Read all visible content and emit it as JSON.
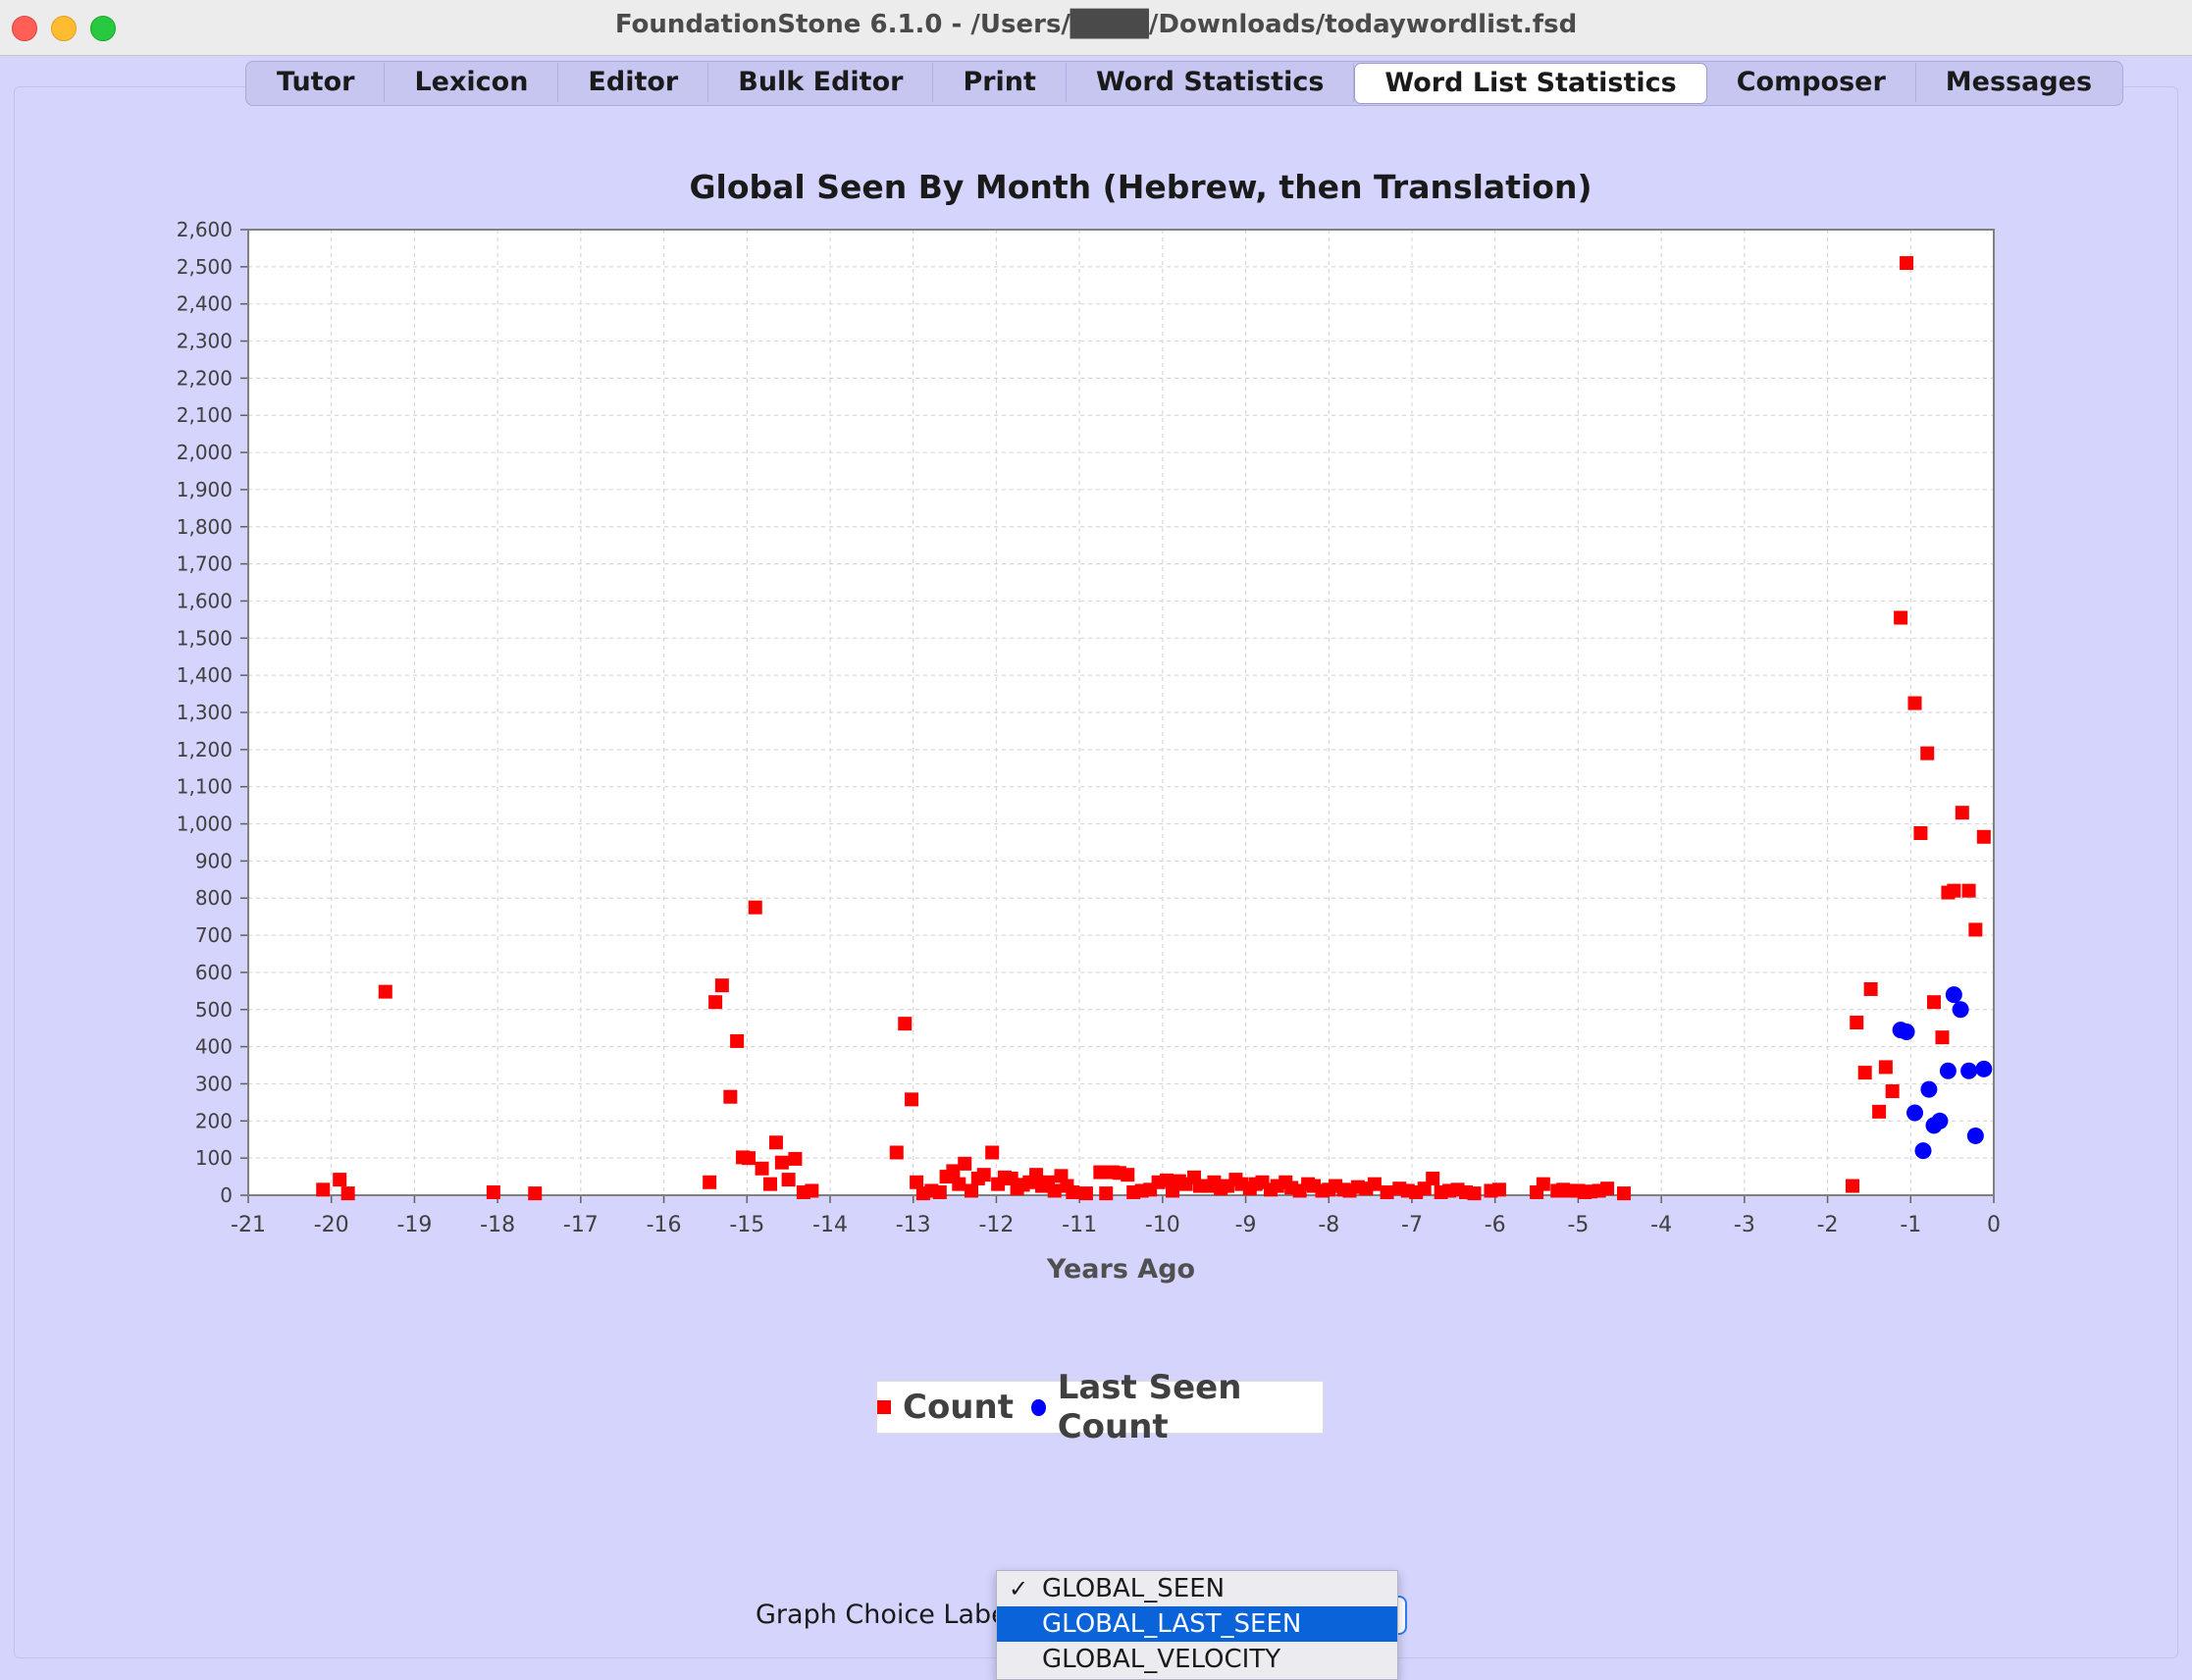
{
  "window": {
    "title": "FoundationStone 6.1.0 - /Users/████/Downloads/todaywordlist.fsd"
  },
  "tabs": [
    {
      "label": "Tutor",
      "active": false
    },
    {
      "label": "Lexicon",
      "active": false
    },
    {
      "label": "Editor",
      "active": false
    },
    {
      "label": "Bulk Editor",
      "active": false
    },
    {
      "label": "Print",
      "active": false
    },
    {
      "label": "Word Statistics",
      "active": false
    },
    {
      "label": "Word List Statistics",
      "active": true
    },
    {
      "label": "Composer",
      "active": false
    },
    {
      "label": "Messages",
      "active": false
    }
  ],
  "controls": {
    "graph_choice_label": "Graph Choice Label:",
    "options": [
      {
        "label": "GLOBAL_SEEN",
        "checked": true,
        "highlighted": false
      },
      {
        "label": "GLOBAL_LAST_SEEN",
        "checked": false,
        "highlighted": true
      },
      {
        "label": "GLOBAL_VELOCITY",
        "checked": false,
        "highlighted": false
      }
    ],
    "check_mark": "✓"
  },
  "chart_data": {
    "type": "scatter",
    "title": "Global Seen By Month (Hebrew, then Translation)",
    "xlabel": "Years Ago",
    "ylabel": "",
    "xlim": [
      -21,
      0
    ],
    "ylim": [
      0,
      2600
    ],
    "x_ticks": [
      -21,
      -20,
      -19,
      -18,
      -17,
      -16,
      -15,
      -14,
      -13,
      -12,
      -11,
      -10,
      -9,
      -8,
      -7,
      -6,
      -5,
      -4,
      -3,
      -2,
      -1,
      0
    ],
    "y_ticks": [
      0,
      100,
      200,
      300,
      400,
      500,
      600,
      700,
      800,
      900,
      1000,
      1100,
      1200,
      1300,
      1400,
      1500,
      1600,
      1700,
      1800,
      1900,
      2000,
      2100,
      2200,
      2300,
      2400,
      2500,
      2600
    ],
    "grid": true,
    "legend_position": "bottom",
    "series": [
      {
        "name": "Count",
        "marker": "square",
        "color": "#ff0000",
        "points": [
          [
            -20.1,
            15
          ],
          [
            -19.9,
            42
          ],
          [
            -19.8,
            5
          ],
          [
            -19.35,
            548
          ],
          [
            -18.05,
            8
          ],
          [
            -17.55,
            5
          ],
          [
            -15.45,
            35
          ],
          [
            -15.38,
            520
          ],
          [
            -15.3,
            565
          ],
          [
            -15.2,
            265
          ],
          [
            -15.12,
            415
          ],
          [
            -15.05,
            102
          ],
          [
            -14.98,
            100
          ],
          [
            -14.9,
            775
          ],
          [
            -14.82,
            72
          ],
          [
            -14.72,
            30
          ],
          [
            -14.65,
            142
          ],
          [
            -14.58,
            88
          ],
          [
            -14.5,
            42
          ],
          [
            -14.42,
            98
          ],
          [
            -14.32,
            8
          ],
          [
            -14.22,
            12
          ],
          [
            -13.2,
            115
          ],
          [
            -13.1,
            462
          ],
          [
            -13.02,
            258
          ],
          [
            -12.96,
            35
          ],
          [
            -12.88,
            5
          ],
          [
            -12.78,
            12
          ],
          [
            -12.68,
            8
          ],
          [
            -12.6,
            50
          ],
          [
            -12.52,
            65
          ],
          [
            -12.45,
            30
          ],
          [
            -12.38,
            85
          ],
          [
            -12.3,
            12
          ],
          [
            -12.22,
            45
          ],
          [
            -12.15,
            55
          ],
          [
            -12.05,
            115
          ],
          [
            -11.98,
            30
          ],
          [
            -11.9,
            48
          ],
          [
            -11.82,
            45
          ],
          [
            -11.75,
            18
          ],
          [
            -11.68,
            28
          ],
          [
            -11.6,
            35
          ],
          [
            -11.52,
            55
          ],
          [
            -11.45,
            25
          ],
          [
            -11.38,
            35
          ],
          [
            -11.3,
            12
          ],
          [
            -11.22,
            52
          ],
          [
            -11.15,
            25
          ],
          [
            -11.08,
            8
          ],
          [
            -10.92,
            5
          ],
          [
            -10.75,
            62
          ],
          [
            -10.68,
            5
          ],
          [
            -10.6,
            62
          ],
          [
            -10.52,
            60
          ],
          [
            -10.42,
            55
          ],
          [
            -10.35,
            8
          ],
          [
            -10.25,
            12
          ],
          [
            -10.15,
            15
          ],
          [
            -10.05,
            35
          ],
          [
            -9.95,
            40
          ],
          [
            -9.88,
            12
          ],
          [
            -9.8,
            38
          ],
          [
            -9.72,
            30
          ],
          [
            -9.62,
            48
          ],
          [
            -9.55,
            25
          ],
          [
            -9.45,
            25
          ],
          [
            -9.38,
            35
          ],
          [
            -9.3,
            18
          ],
          [
            -9.22,
            25
          ],
          [
            -9.12,
            42
          ],
          [
            -9.05,
            30
          ],
          [
            -8.95,
            18
          ],
          [
            -8.88,
            30
          ],
          [
            -8.8,
            35
          ],
          [
            -8.7,
            15
          ],
          [
            -8.62,
            25
          ],
          [
            -8.52,
            35
          ],
          [
            -8.45,
            20
          ],
          [
            -8.35,
            12
          ],
          [
            -8.25,
            30
          ],
          [
            -8.18,
            25
          ],
          [
            -8.08,
            12
          ],
          [
            -8.0,
            15
          ],
          [
            -7.92,
            25
          ],
          [
            -7.82,
            15
          ],
          [
            -7.75,
            12
          ],
          [
            -7.65,
            22
          ],
          [
            -7.55,
            18
          ],
          [
            -7.45,
            30
          ],
          [
            -7.3,
            8
          ],
          [
            -7.15,
            18
          ],
          [
            -7.05,
            12
          ],
          [
            -6.95,
            8
          ],
          [
            -6.85,
            18
          ],
          [
            -6.75,
            45
          ],
          [
            -6.65,
            8
          ],
          [
            -6.55,
            12
          ],
          [
            -6.45,
            15
          ],
          [
            -6.35,
            8
          ],
          [
            -6.25,
            5
          ],
          [
            -6.05,
            12
          ],
          [
            -5.95,
            15
          ],
          [
            -5.5,
            8
          ],
          [
            -5.42,
            30
          ],
          [
            -5.25,
            12
          ],
          [
            -5.18,
            15
          ],
          [
            -5.1,
            12
          ],
          [
            -5.0,
            12
          ],
          [
            -4.92,
            8
          ],
          [
            -4.85,
            10
          ],
          [
            -4.75,
            12
          ],
          [
            -4.65,
            18
          ],
          [
            -4.45,
            5
          ],
          [
            -1.7,
            25
          ],
          [
            -1.65,
            465
          ],
          [
            -1.55,
            330
          ],
          [
            -1.48,
            555
          ],
          [
            -1.38,
            225
          ],
          [
            -1.3,
            345
          ],
          [
            -1.22,
            280
          ],
          [
            -1.12,
            1555
          ],
          [
            -1.05,
            2510
          ],
          [
            -0.95,
            1325
          ],
          [
            -0.88,
            975
          ],
          [
            -0.8,
            1190
          ],
          [
            -0.72,
            520
          ],
          [
            -0.62,
            425
          ],
          [
            -0.55,
            815
          ],
          [
            -0.48,
            820
          ],
          [
            -0.38,
            1030
          ],
          [
            -0.3,
            820
          ],
          [
            -0.22,
            715
          ],
          [
            -0.12,
            965
          ]
        ]
      },
      {
        "name": "Last Seen Count",
        "marker": "circle",
        "color": "#0000ff",
        "points": [
          [
            -1.12,
            445
          ],
          [
            -1.05,
            440
          ],
          [
            -0.95,
            222
          ],
          [
            -0.85,
            120
          ],
          [
            -0.78,
            285
          ],
          [
            -0.72,
            188
          ],
          [
            -0.65,
            200
          ],
          [
            -0.55,
            335
          ],
          [
            -0.48,
            540
          ],
          [
            -0.4,
            500
          ],
          [
            -0.3,
            335
          ],
          [
            -0.22,
            160
          ],
          [
            -0.12,
            340
          ]
        ]
      }
    ]
  }
}
